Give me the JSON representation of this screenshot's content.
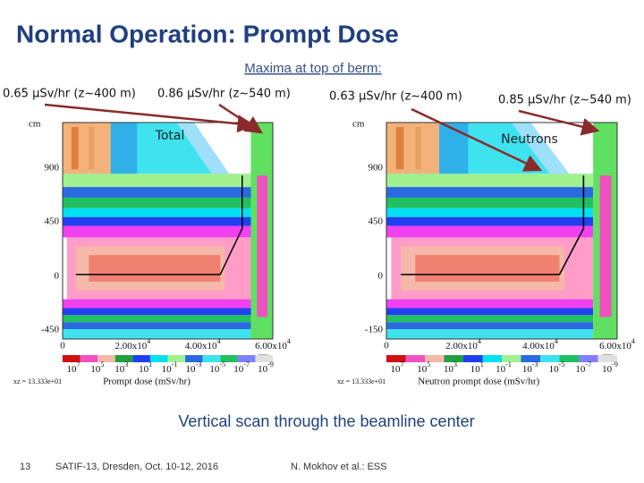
{
  "title": "Normal Operation: Prompt Dose",
  "subtitle": "Maxima at top of berm:",
  "annotations": [
    "0.65 μSv/hr (z~400 m)",
    "0.86 μSv/hr (z~540 m)",
    "0.63 μSv/hr (z~400 m)",
    "0.85 μSv/hr (z~540 m)"
  ],
  "panels": [
    {
      "label": "Total",
      "y_unit": "cm",
      "x_unit": "cm",
      "yticks": [
        "900",
        "450",
        "0",
        "-450"
      ],
      "xticks": [
        "0",
        {
          "mantissa": "2.00x10",
          "exponent": "4"
        },
        {
          "mantissa": "4.00x10",
          "exponent": "4"
        },
        {
          "mantissa": "6.00x10",
          "exponent": "4"
        }
      ],
      "scale": [
        {
          "mantissa": "10",
          "exponent": "7"
        },
        {
          "mantissa": "10",
          "exponent": "5"
        },
        {
          "mantissa": "10",
          "exponent": "3"
        },
        {
          "mantissa": "10",
          "exponent": "1"
        },
        {
          "mantissa": "10",
          "exponent": "-1"
        },
        {
          "mantissa": "10",
          "exponent": "-3"
        },
        {
          "mantissa": "10",
          "exponent": "-5"
        },
        {
          "mantissa": "10",
          "exponent": "-7"
        },
        {
          "mantissa": "10",
          "exponent": "-9"
        }
      ],
      "axis_title": "Prompt dose (mSv/hr)",
      "note": "xz = 13.333e+01"
    },
    {
      "label": "Neutrons",
      "y_unit": "cm",
      "x_unit": "cm",
      "yticks": [
        "900",
        "450",
        "0",
        "-150"
      ],
      "xticks": [
        "0",
        {
          "mantissa": "2.00x10",
          "exponent": "4"
        },
        {
          "mantissa": "4.00x10",
          "exponent": "4"
        },
        {
          "mantissa": "6.00x10",
          "exponent": "4"
        }
      ],
      "scale": [
        {
          "mantissa": "10",
          "exponent": "7"
        },
        {
          "mantissa": "10",
          "exponent": "5"
        },
        {
          "mantissa": "10",
          "exponent": "3"
        },
        {
          "mantissa": "10",
          "exponent": "1"
        },
        {
          "mantissa": "10",
          "exponent": "-1"
        },
        {
          "mantissa": "10",
          "exponent": "-3"
        },
        {
          "mantissa": "10",
          "exponent": "-5"
        },
        {
          "mantissa": "10",
          "exponent": "-7"
        },
        {
          "mantissa": "10",
          "exponent": "-9"
        }
      ],
      "axis_title": "Neutron prompt dose (mSv/hr)",
      "note": "xz = 13.333e+01"
    }
  ],
  "caption": "Vertical scan through the beamline center",
  "footer": {
    "page": "13",
    "event": "SATIF-13, Dresden, Oct. 10-12, 2016",
    "author": "N. Mokhov et al.: ESS"
  }
}
